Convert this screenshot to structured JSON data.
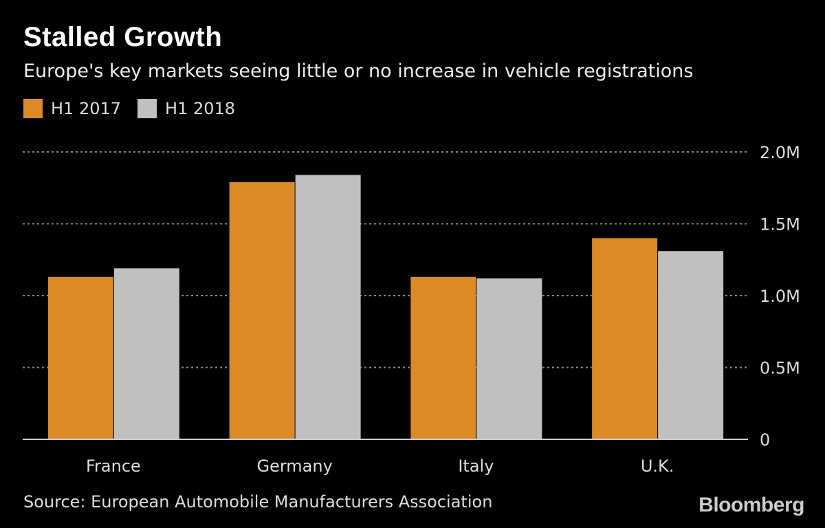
{
  "chart_data": {
    "type": "bar",
    "title": "Stalled Growth",
    "subtitle": "Europe's key markets seeing little or no increase in vehicle registrations",
    "categories": [
      "France",
      "Germany",
      "Italy",
      "U.K."
    ],
    "series": [
      {
        "name": "H1 2017",
        "color": "#dc8a26",
        "values": [
          1.13,
          1.79,
          1.13,
          1.4
        ]
      },
      {
        "name": "H1 2018",
        "color": "#c0c0c0",
        "values": [
          1.19,
          1.84,
          1.12,
          1.31
        ]
      }
    ],
    "ylim": [
      0,
      2.0
    ],
    "yticks": [
      0,
      0.5,
      1.0,
      1.5,
      2.0
    ],
    "ytick_labels": [
      "0",
      "0.5M",
      "1.0M",
      "1.5M",
      "2.0M"
    ],
    "y_axis_position": "right",
    "grid": true,
    "legend_position": "top-left",
    "source": "Source: European Automobile Manufacturers Association",
    "logo": "Bloomberg"
  }
}
